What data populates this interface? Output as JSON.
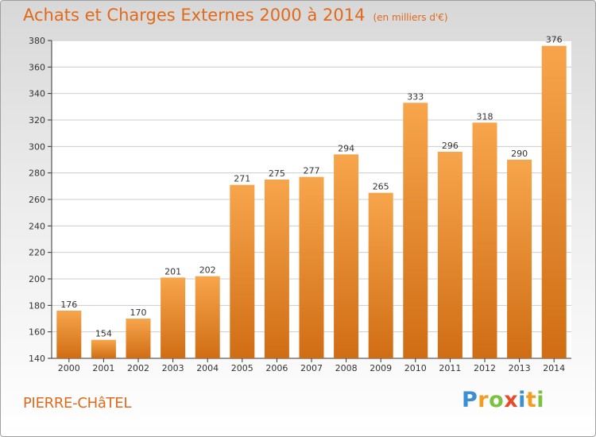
{
  "header": {
    "title": "Achats et Charges Externes 2000 à 2014",
    "subtitle": "(en milliers d'€)"
  },
  "footer": {
    "location": "PIERRE-CHâTEL",
    "brand": "Proxiti",
    "brand_letters": [
      {
        "ch": "P",
        "color": "#3a8fd6"
      },
      {
        "ch": "r",
        "color": "#f39c1f"
      },
      {
        "ch": "o",
        "color": "#7cc242"
      },
      {
        "ch": "x",
        "color": "#e84a2a"
      },
      {
        "ch": "i",
        "color": "#3a8fd6"
      },
      {
        "ch": "t",
        "color": "#f39c1f"
      },
      {
        "ch": "i",
        "color": "#7cc242"
      }
    ]
  },
  "chart_data": {
    "type": "bar",
    "title": "Achats et Charges Externes 2000 à 2014",
    "subtitle": "(en milliers d'€)",
    "xlabel": "",
    "ylabel": "",
    "categories": [
      "2000",
      "2001",
      "2002",
      "2003",
      "2004",
      "2005",
      "2006",
      "2007",
      "2008",
      "2009",
      "2010",
      "2011",
      "2012",
      "2013",
      "2014"
    ],
    "values": [
      176,
      154,
      170,
      201,
      202,
      271,
      275,
      277,
      294,
      265,
      333,
      296,
      318,
      290,
      376
    ],
    "ylim": [
      140,
      380
    ],
    "yticks": [
      140,
      160,
      180,
      200,
      220,
      240,
      260,
      280,
      300,
      320,
      340,
      360,
      380
    ],
    "grid": true,
    "legend": "none",
    "colors": {
      "bar_light": "#f7a54c",
      "bar_dark": "#d06d14",
      "grid": "#cccccc",
      "axis": "#333333",
      "text": "#333333"
    }
  }
}
